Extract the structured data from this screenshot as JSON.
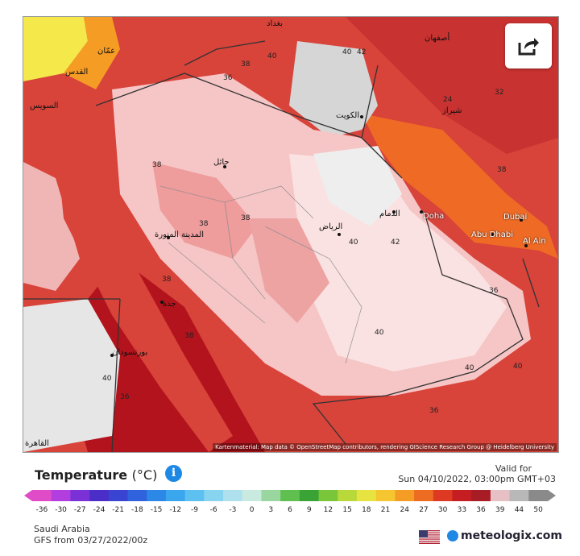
{
  "map": {
    "attribution": "Kartenmaterial: Map data © OpenStreetMap contributors, rendering GIScience Research Group @ Heidelberg University",
    "temperature_labels": [
      "38",
      "38",
      "38",
      "38",
      "38",
      "38",
      "38",
      "40",
      "40",
      "40",
      "42",
      "40",
      "40",
      "40",
      "36",
      "36",
      "36",
      "36",
      "32",
      "24",
      "42",
      "40"
    ],
    "cities": [
      "الرياض",
      "المدينة المنورة",
      "جدة",
      "حائل",
      "بورتسودان",
      "الكويت",
      "الدمام",
      "Doha",
      "Abu Dhabi",
      "Dubai",
      "Al Ain",
      "عمّان",
      "القدس",
      "السويس",
      "شيراز",
      "أصفهان",
      "بغداد",
      "القاهرة"
    ],
    "colors": {
      "very_hot": "#b3131c",
      "hot": "#d8433a",
      "warm_orange": "#ef6a25",
      "mild_pink": "#f6c6c6",
      "light_pink": "#fbe2e2",
      "gray": "#d6d6d6",
      "yellow": "#f5e84a"
    }
  },
  "share": {
    "icon": "share-icon"
  },
  "legend": {
    "title": "Temperature",
    "unit": "(°C)",
    "info_icon": "i",
    "valid_for_label": "Valid for",
    "valid_time": "Sun 04/10/2022, 03:00pm GMT+03",
    "scale_labels": [
      "-36",
      "-30",
      "-27",
      "-24",
      "-21",
      "-18",
      "-15",
      "-12",
      "-9",
      "-6",
      "-3",
      "0",
      "3",
      "6",
      "9",
      "12",
      "15",
      "18",
      "21",
      "24",
      "27",
      "30",
      "33",
      "36",
      "39",
      "44",
      "50"
    ],
    "scale_colors": [
      "#e04cc8",
      "#b23ee0",
      "#7a32d6",
      "#4b2ec8",
      "#3a44d2",
      "#2f62dc",
      "#2c88e6",
      "#3aa6ee",
      "#5cc0f0",
      "#86d4f0",
      "#aee0ee",
      "#c8eadf",
      "#9ad7a0",
      "#5fbf4f",
      "#3aa336",
      "#79c63a",
      "#b9d83a",
      "#e7e340",
      "#f5c62f",
      "#f59c25",
      "#ee6b22",
      "#de3a23",
      "#c41e22",
      "#a81c26",
      "#e6c0c4",
      "#b8b8b8",
      "#8a8a8a"
    ]
  },
  "footer": {
    "region": "Saudi Arabia",
    "model_run": "GFS from 03/27/2022/00z",
    "brand": "meteologix.com",
    "flag_icon": "us-flag-icon"
  }
}
